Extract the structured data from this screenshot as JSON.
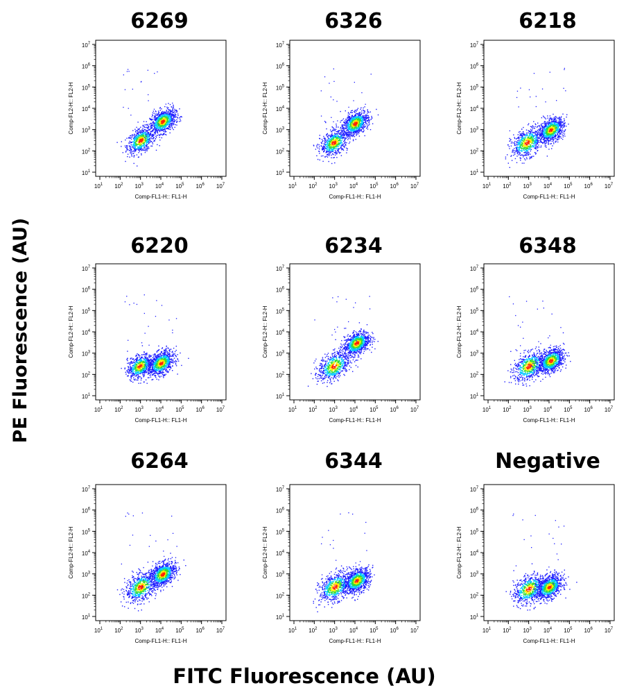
{
  "figure": {
    "ylabel": "PE Fluorescence (AU)",
    "xlabel": "FITC Fluorescence (AU)"
  },
  "chart_data": [
    {
      "type": "scatter",
      "title": "6269",
      "xlabel": "Comp-FL1-H:: FL1-H",
      "ylabel": "Comp-FL2-H:: FL2-H",
      "x_scale": "log",
      "y_scale": "log",
      "xlim": [
        10,
        10000000
      ],
      "ylim": [
        10,
        10000000
      ],
      "x_tick_labels": [
        "10^1",
        "10^2",
        "10^3",
        "10^4",
        "10^5",
        "10^6",
        "10^7"
      ],
      "y_tick_labels": [
        "10^1",
        "10^2",
        "10^3",
        "10^4",
        "10^5",
        "10^6",
        "10^7"
      ],
      "clusters": [
        {
          "center": [
            1000,
            320
          ],
          "spread": "low"
        },
        {
          "center": [
            12000,
            2500
          ],
          "spread": "high density"
        }
      ]
    },
    {
      "type": "scatter",
      "title": "6326",
      "xlabel": "Comp-FL1-H:: FL1-H",
      "ylabel": "Comp-FL2-H:: FL2-H",
      "x_scale": "log",
      "y_scale": "log",
      "xlim": [
        10,
        10000000
      ],
      "ylim": [
        10,
        10000000
      ],
      "x_tick_labels": [
        "10^1",
        "10^2",
        "10^3",
        "10^4",
        "10^5",
        "10^6",
        "10^7"
      ],
      "y_tick_labels": [
        "10^1",
        "10^2",
        "10^3",
        "10^4",
        "10^5",
        "10^6",
        "10^7"
      ],
      "clusters": [
        {
          "center": [
            900,
            250
          ],
          "spread": "low"
        },
        {
          "center": [
            10000,
            2000
          ],
          "spread": "high density"
        }
      ]
    },
    {
      "type": "scatter",
      "title": "6218",
      "xlabel": "Comp-FL1-H:: FL1-H",
      "ylabel": "Comp-FL2-H:: FL2-H",
      "x_scale": "log",
      "y_scale": "log",
      "xlim": [
        10,
        10000000
      ],
      "ylim": [
        10,
        10000000
      ],
      "x_tick_labels": [
        "10^1",
        "10^2",
        "10^3",
        "10^4",
        "10^5",
        "10^6",
        "10^7"
      ],
      "y_tick_labels": [
        "10^1",
        "10^2",
        "10^3",
        "10^4",
        "10^5",
        "10^6",
        "10^7"
      ],
      "clusters": [
        {
          "center": [
            800,
            250
          ],
          "spread": "medium"
        },
        {
          "center": [
            12000,
            1000
          ],
          "spread": "high density"
        }
      ]
    },
    {
      "type": "scatter",
      "title": "6220",
      "xlabel": "Comp-FL1-H:: FL1-H",
      "ylabel": "Comp-FL2-H:: FL2-H",
      "x_scale": "log",
      "y_scale": "log",
      "xlim": [
        10,
        10000000
      ],
      "ylim": [
        10,
        10000000
      ],
      "x_tick_labels": [
        "10^1",
        "10^2",
        "10^3",
        "10^4",
        "10^5",
        "10^6",
        "10^7"
      ],
      "y_tick_labels": [
        "10^1",
        "10^2",
        "10^3",
        "10^4",
        "10^5",
        "10^6",
        "10^7"
      ],
      "clusters": [
        {
          "center": [
            900,
            250
          ],
          "spread": "high density"
        },
        {
          "center": [
            10000,
            350
          ],
          "spread": "high density"
        }
      ]
    },
    {
      "type": "scatter",
      "title": "6234",
      "xlabel": "Comp-FL1-H:: FL1-H",
      "ylabel": "Comp-FL2-H:: FL2-H",
      "x_scale": "log",
      "y_scale": "log",
      "xlim": [
        10,
        10000000
      ],
      "ylim": [
        10,
        10000000
      ],
      "x_tick_labels": [
        "10^1",
        "10^2",
        "10^3",
        "10^4",
        "10^5",
        "10^6",
        "10^7"
      ],
      "y_tick_labels": [
        "10^1",
        "10^2",
        "10^3",
        "10^4",
        "10^5",
        "10^6",
        "10^7"
      ],
      "clusters": [
        {
          "center": [
            900,
            250
          ],
          "spread": "medium"
        },
        {
          "center": [
            12000,
            3000
          ],
          "spread": "high density"
        }
      ]
    },
    {
      "type": "scatter",
      "title": "6348",
      "xlabel": "Comp-FL1-H:: FL1-H",
      "ylabel": "Comp-FL2-H:: FL2-H",
      "x_scale": "log",
      "y_scale": "log",
      "xlim": [
        10,
        10000000
      ],
      "ylim": [
        10,
        10000000
      ],
      "x_tick_labels": [
        "10^1",
        "10^2",
        "10^3",
        "10^4",
        "10^5",
        "10^6",
        "10^7"
      ],
      "y_tick_labels": [
        "10^1",
        "10^2",
        "10^3",
        "10^4",
        "10^5",
        "10^6",
        "10^7"
      ],
      "clusters": [
        {
          "center": [
            1000,
            250
          ],
          "spread": "medium"
        },
        {
          "center": [
            12000,
            450
          ],
          "spread": "high density"
        }
      ]
    },
    {
      "type": "scatter",
      "title": "6264",
      "xlabel": "Comp-FL1-H:: FL1-H",
      "ylabel": "Comp-FL2-H:: FL2-H",
      "x_scale": "log",
      "y_scale": "log",
      "xlim": [
        10,
        10000000
      ],
      "ylim": [
        10,
        10000000
      ],
      "x_tick_labels": [
        "10^1",
        "10^2",
        "10^3",
        "10^4",
        "10^5",
        "10^6",
        "10^7"
      ],
      "y_tick_labels": [
        "10^1",
        "10^2",
        "10^3",
        "10^4",
        "10^5",
        "10^6",
        "10^7"
      ],
      "clusters": [
        {
          "center": [
            1000,
            250
          ],
          "spread": "medium"
        },
        {
          "center": [
            12000,
            1000
          ],
          "spread": "high density"
        }
      ]
    },
    {
      "type": "scatter",
      "title": "6344",
      "xlabel": "Comp-FL1-H:: FL1-H",
      "ylabel": "Comp-FL2-H:: FL2-H",
      "x_scale": "log",
      "y_scale": "log",
      "xlim": [
        10,
        10000000
      ],
      "ylim": [
        10,
        10000000
      ],
      "x_tick_labels": [
        "10^1",
        "10^2",
        "10^3",
        "10^4",
        "10^5",
        "10^6",
        "10^7"
      ],
      "y_tick_labels": [
        "10^1",
        "10^2",
        "10^3",
        "10^4",
        "10^5",
        "10^6",
        "10^7"
      ],
      "clusters": [
        {
          "center": [
            1000,
            250
          ],
          "spread": "medium"
        },
        {
          "center": [
            12000,
            500
          ],
          "spread": "high density"
        }
      ]
    },
    {
      "type": "scatter",
      "title": "Negative",
      "xlabel": "Comp-FL1-H:: FL1-H",
      "ylabel": "Comp-FL2-H:: FL2-H",
      "x_scale": "log",
      "y_scale": "log",
      "xlim": [
        10,
        10000000
      ],
      "ylim": [
        10,
        10000000
      ],
      "x_tick_labels": [
        "10^1",
        "10^2",
        "10^3",
        "10^4",
        "10^5",
        "10^6",
        "10^7"
      ],
      "y_tick_labels": [
        "10^1",
        "10^2",
        "10^3",
        "10^4",
        "10^5",
        "10^6",
        "10^7"
      ],
      "clusters": [
        {
          "center": [
            1000,
            200
          ],
          "spread": "medium"
        },
        {
          "center": [
            10000,
            250
          ],
          "spread": "high density"
        }
      ]
    }
  ],
  "colors": {
    "low": "#1a1aff",
    "mid": "#00c8ff",
    "mid2": "#33dd33",
    "high": "#ffee00",
    "peak": "#ff2200"
  }
}
